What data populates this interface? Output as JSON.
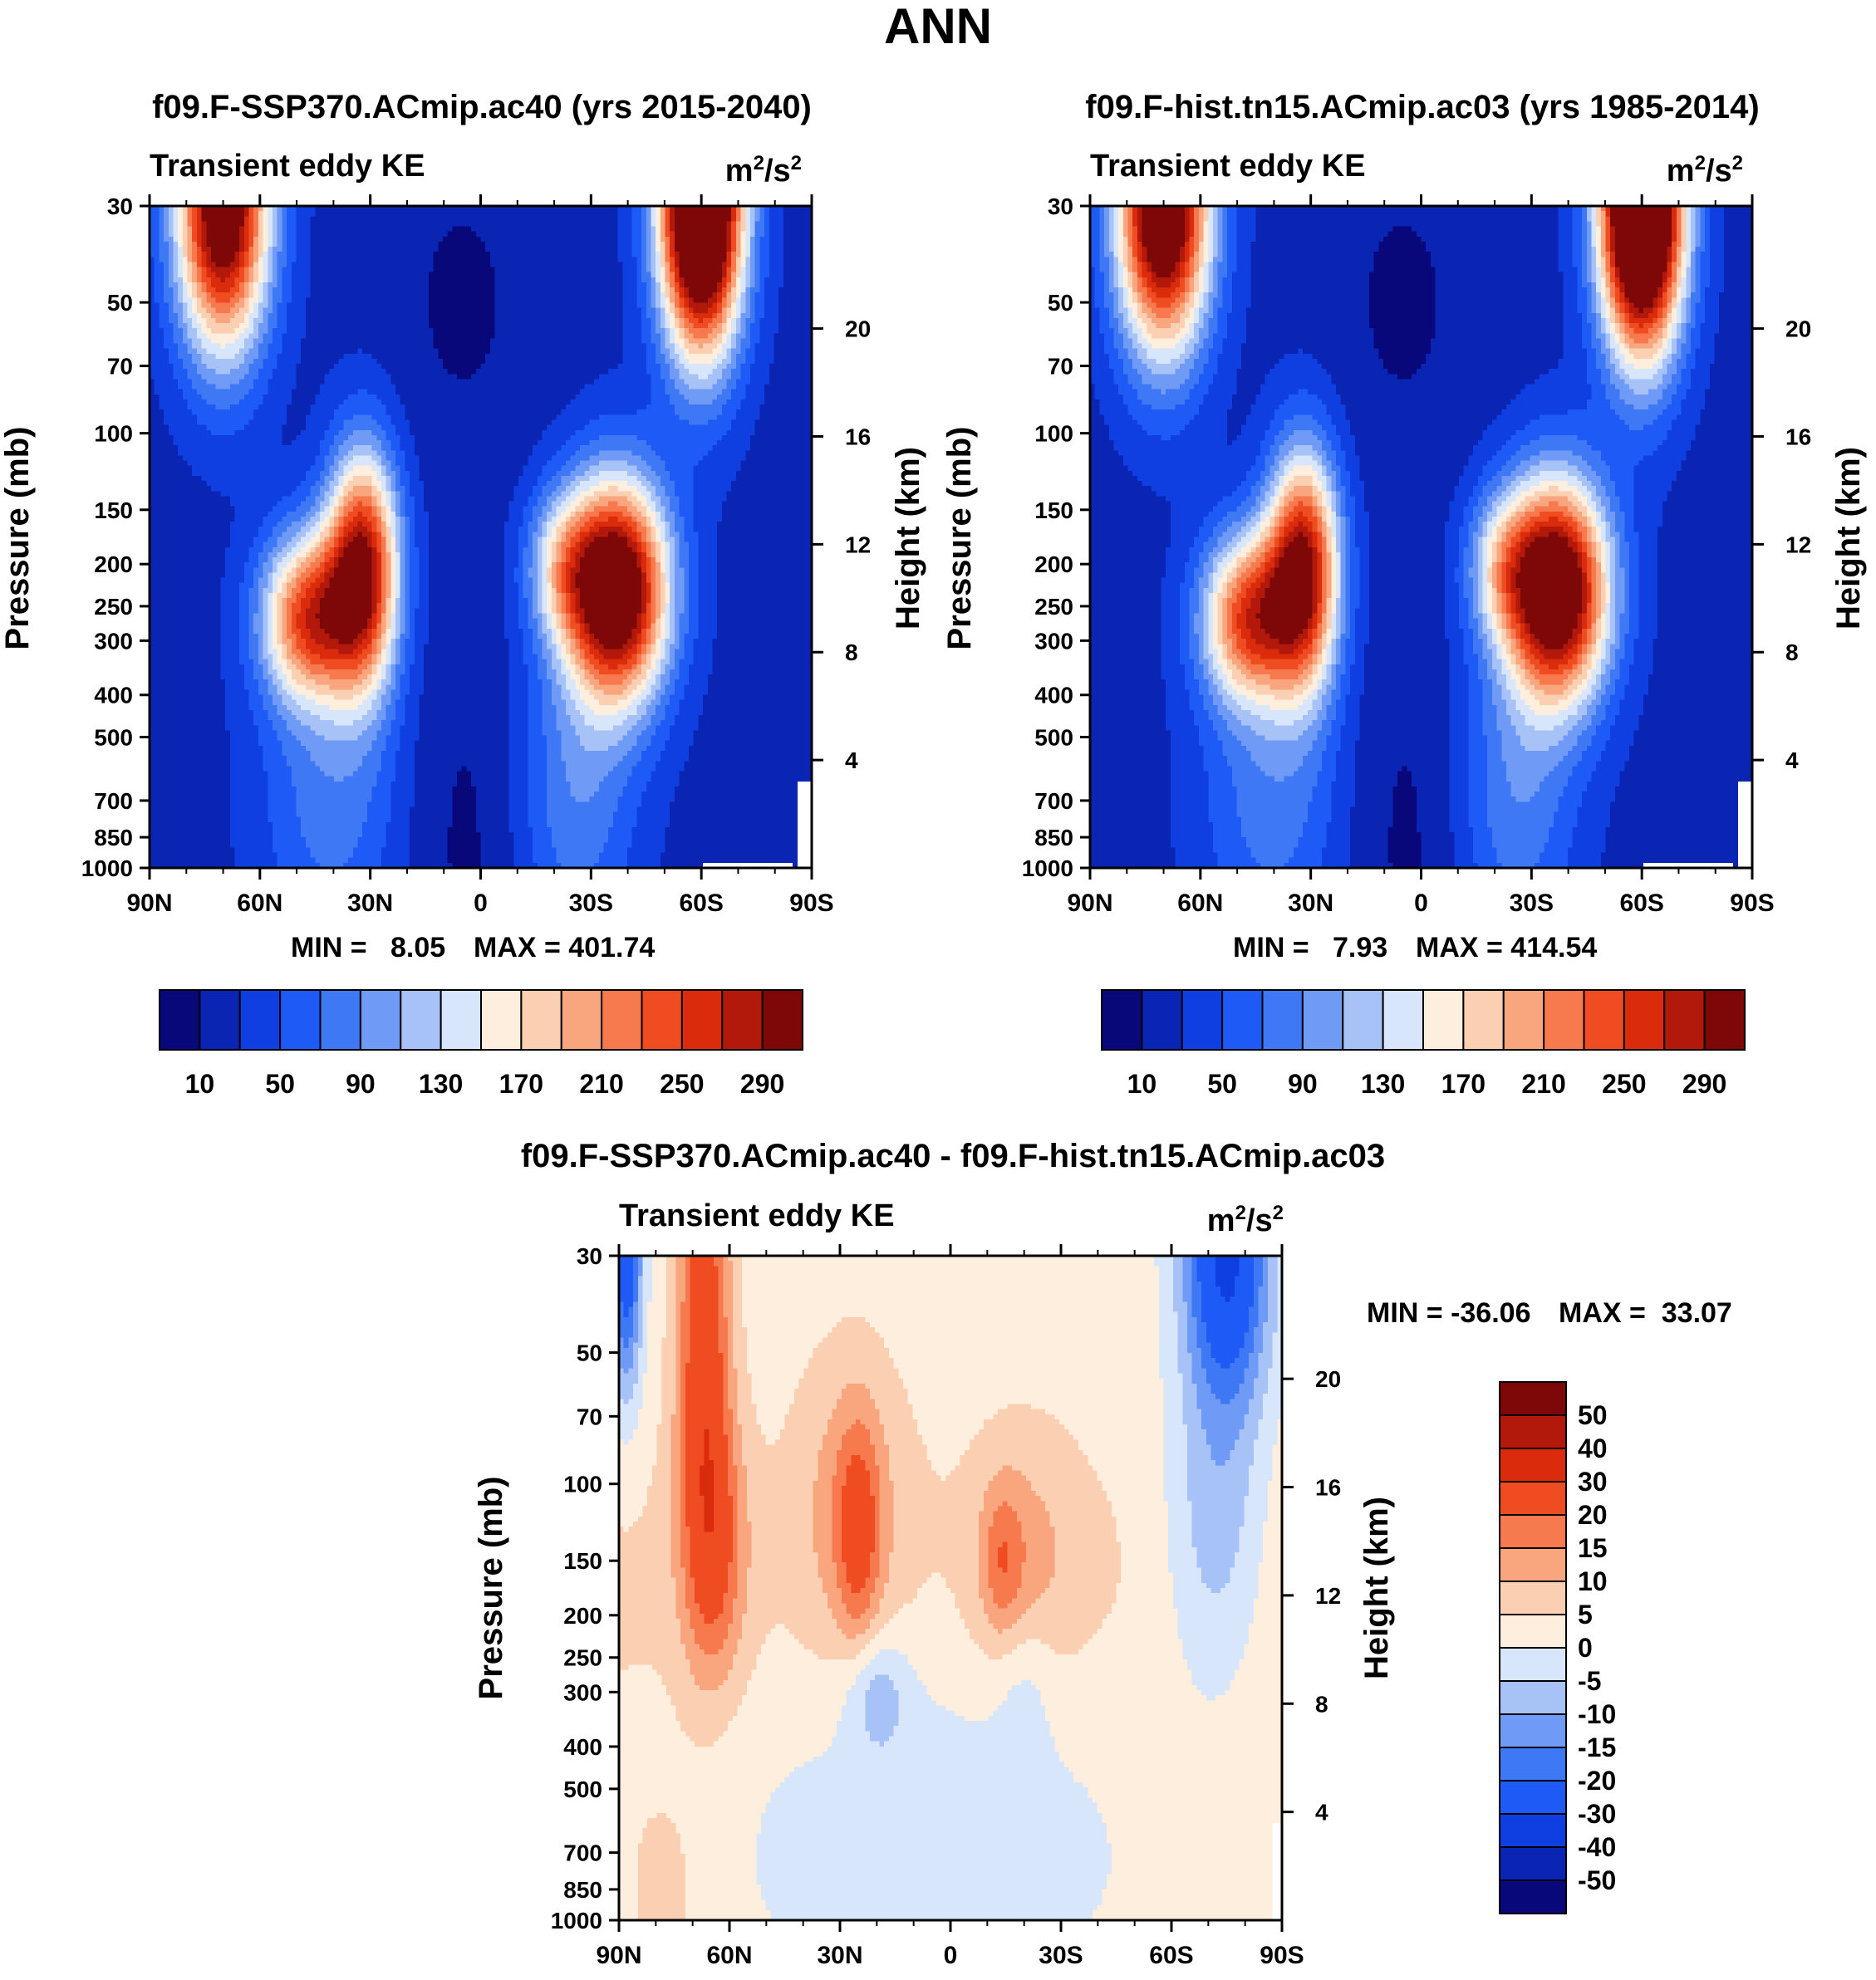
{
  "figure_title": "ANN",
  "units_label": "m²/s²",
  "chart_data": [
    {
      "type": "heatmap",
      "id": "panel_a",
      "title": "f09.F-SSP370.ACmip.ac40 (yrs 2015-2040)",
      "subtitle": "Transient eddy KE",
      "units": "m²/s²",
      "xlabel": "",
      "ylabel": "Pressure (mb)",
      "y2label": "Height (km)",
      "x_ticks": [
        "90N",
        "60N",
        "30N",
        "0",
        "30S",
        "60S",
        "90S"
      ],
      "y_ticks": [
        30,
        50,
        70,
        100,
        150,
        200,
        250,
        300,
        400,
        500,
        700,
        850,
        1000
      ],
      "y2_ticks": [
        4,
        8,
        12,
        16,
        20
      ],
      "min_label": "MIN =   8.05",
      "max_label": "MAX = 401.74",
      "min": 8.05,
      "max": 401.74,
      "colorbar_labels": [
        "10",
        "50",
        "90",
        "130",
        "170",
        "210",
        "250",
        "290"
      ],
      "levels": [
        10,
        30,
        50,
        70,
        90,
        110,
        130,
        150,
        170,
        190,
        210,
        230,
        250,
        270,
        290
      ]
    },
    {
      "type": "heatmap",
      "id": "panel_b",
      "title": "f09.F-hist.tn15.ACmip.ac03 (yrs 1985-2014)",
      "subtitle": "Transient eddy KE",
      "units": "m²/s²",
      "xlabel": "",
      "ylabel": "Pressure (mb)",
      "y2label": "Height (km)",
      "x_ticks": [
        "90N",
        "60N",
        "30N",
        "0",
        "30S",
        "60S",
        "90S"
      ],
      "y_ticks": [
        30,
        50,
        70,
        100,
        150,
        200,
        250,
        300,
        400,
        500,
        700,
        850,
        1000
      ],
      "y2_ticks": [
        4,
        8,
        12,
        16,
        20
      ],
      "min_label": "MIN =   7.93",
      "max_label": "MAX = 414.54",
      "min": 7.93,
      "max": 414.54,
      "colorbar_labels": [
        "10",
        "50",
        "90",
        "130",
        "170",
        "210",
        "250",
        "290"
      ],
      "levels": [
        10,
        30,
        50,
        70,
        90,
        110,
        130,
        150,
        170,
        190,
        210,
        230,
        250,
        270,
        290
      ]
    },
    {
      "type": "heatmap",
      "id": "panel_diff",
      "title": "f09.F-SSP370.ACmip.ac40 - f09.F-hist.tn15.ACmip.ac03",
      "subtitle": "Transient eddy KE",
      "units": "m²/s²",
      "xlabel": "",
      "ylabel": "Pressure (mb)",
      "y2label": "Height (km)",
      "x_ticks": [
        "90N",
        "60N",
        "30N",
        "0",
        "30S",
        "60S",
        "90S"
      ],
      "y_ticks": [
        30,
        50,
        70,
        100,
        150,
        200,
        250,
        300,
        400,
        500,
        700,
        850,
        1000
      ],
      "y2_ticks": [
        4,
        8,
        12,
        16,
        20
      ],
      "min_label": "MIN = -36.06",
      "max_label": "MAX =  33.07",
      "min": -36.06,
      "max": 33.07,
      "colorbar_labels": [
        "50",
        "40",
        "30",
        "20",
        "15",
        "10",
        "5",
        "0",
        "-5",
        "-10",
        "-15",
        "-20",
        "-30",
        "-40",
        "-50"
      ],
      "levels": [
        -50,
        -40,
        -30,
        -20,
        -15,
        -10,
        -5,
        0,
        5,
        10,
        15,
        20,
        30,
        40,
        50
      ]
    }
  ],
  "colors": {
    "seq": [
      "#08087a",
      "#0a24b4",
      "#0f3fe0",
      "#1e5af5",
      "#3e78f4",
      "#6f9af5",
      "#a7c2f7",
      "#d8e6fb",
      "#fdeedd",
      "#fbcfb2",
      "#f9a67e",
      "#f77a4f",
      "#ef4c22",
      "#da2c0c",
      "#b3190a",
      "#7e0808"
    ],
    "div": [
      "#08087a",
      "#0a24b4",
      "#0f3fe0",
      "#1e5af5",
      "#3e78f4",
      "#6f9af5",
      "#a7c2f7",
      "#d8e6fb",
      "#fdeedd",
      "#fbcfb2",
      "#f9a67e",
      "#f77a4f",
      "#ef4c22",
      "#da2c0c",
      "#b3190a",
      "#7e0808"
    ]
  }
}
